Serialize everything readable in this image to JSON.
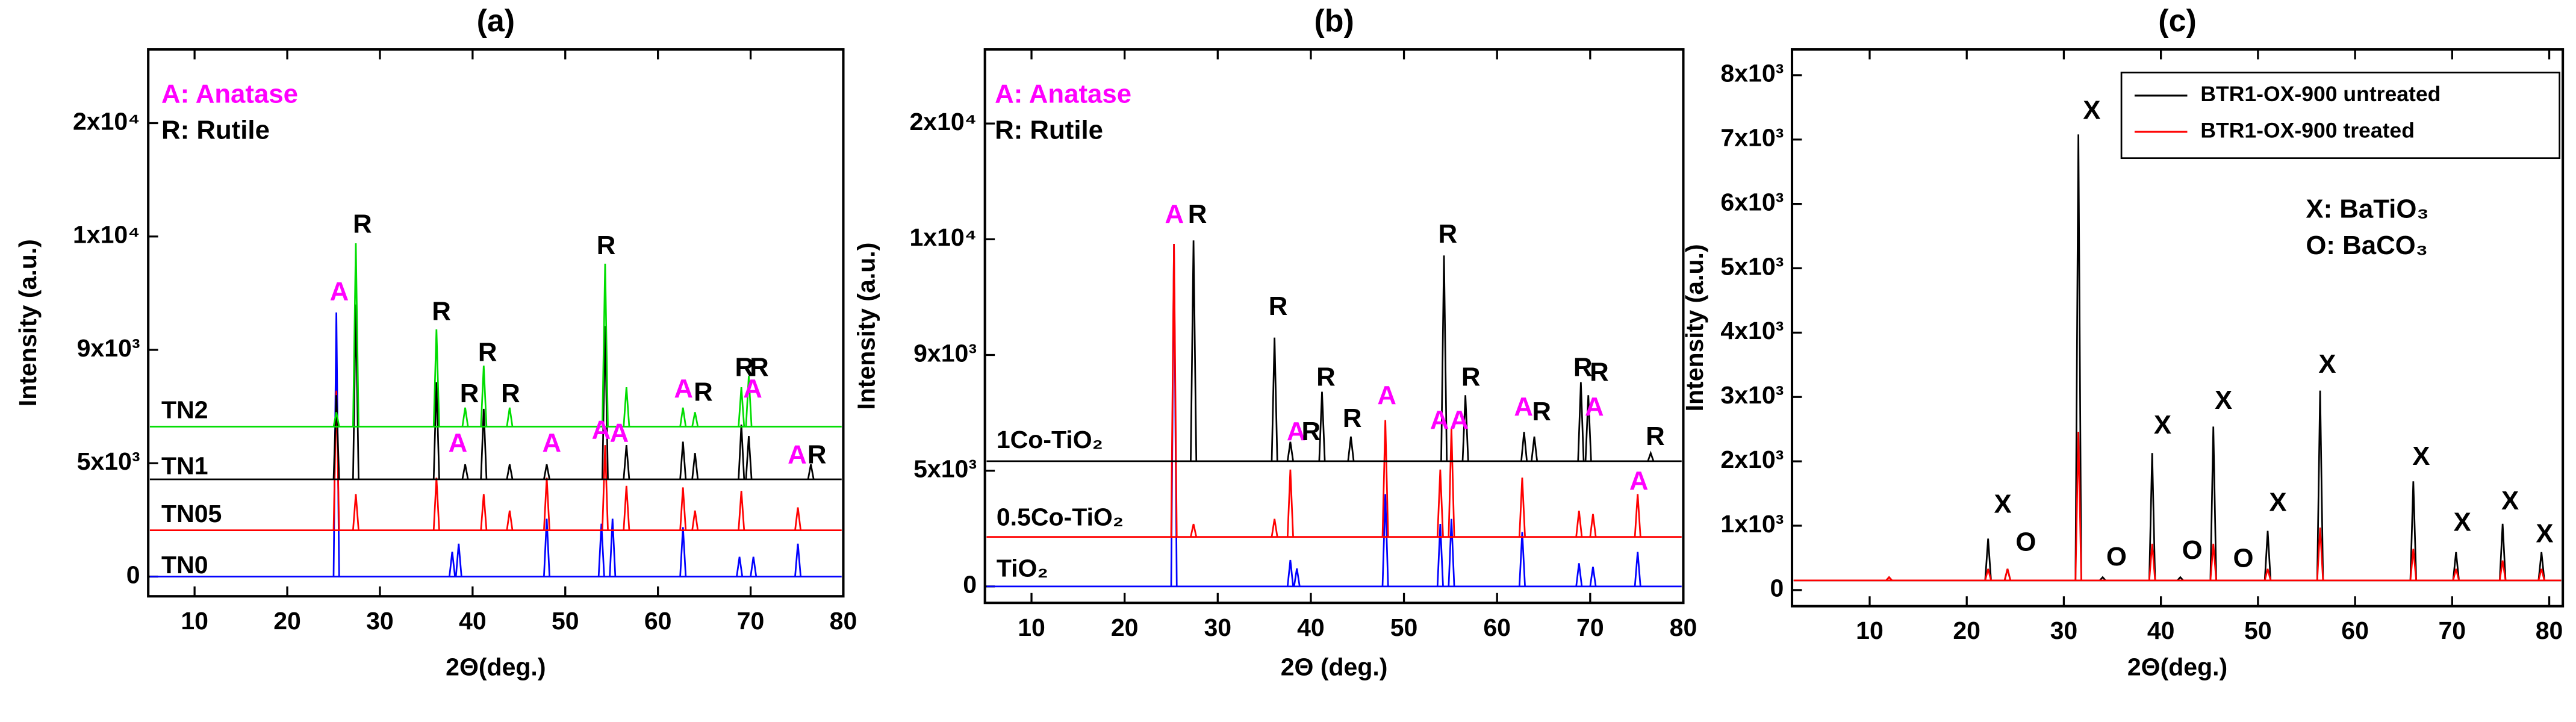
{
  "chart_data": [
    {
      "type": "line",
      "title": "(a)",
      "x_label": "2Θ(deg.)",
      "y_label": "Intensity (a.u.)",
      "xlim": [
        5,
        80
      ],
      "xticks": [
        10,
        20,
        30,
        40,
        50,
        60,
        70,
        80
      ],
      "ylim": [
        -870,
        26500
      ],
      "y_scale": "tick-spaced",
      "yticks": [
        0,
        {
          "value": 5000,
          "label": "5x10³"
        },
        {
          "value": 9000,
          "label": "9x10³"
        },
        {
          "value": 10000,
          "label": "1x10⁴"
        },
        {
          "value": 20000,
          "label": "2x10⁴"
        }
      ],
      "legend": "inline",
      "series": [
        {
          "name": "TN0",
          "color": "#0000ff",
          "baseline": 0,
          "x": [
            25.3,
            37.8,
            38.5,
            48.0,
            53.9,
            55.1,
            62.7,
            68.8,
            70.3,
            75.1
          ],
          "values": [
            9330,
            1090,
            1450,
            2550,
            2330,
            2550,
            2180,
            870,
            870,
            1450
          ]
        },
        {
          "name": "TN05",
          "color": "#ff0000",
          "baseline": 2040,
          "x": [
            25.3,
            27.4,
            36.1,
            41.2,
            44.0,
            48.0,
            54.3,
            56.6,
            62.7,
            64.0,
            69.0,
            75.1
          ],
          "values": [
            7560,
            3640,
            4360,
            3640,
            2910,
            4360,
            5640,
            4000,
            3930,
            2910,
            3780,
            3050
          ]
        },
        {
          "name": "TN1",
          "color": "#000000",
          "baseline": 4290,
          "x": [
            25.3,
            27.4,
            36.1,
            39.2,
            41.2,
            44.0,
            48.0,
            54.3,
            56.6,
            62.7,
            64.0,
            69.0,
            69.8,
            76.5
          ],
          "values": [
            7400,
            9400,
            7860,
            4950,
            6920,
            4950,
            4950,
            9210,
            5640,
            5760,
            5360,
            6360,
            5960,
            4950
          ]
        },
        {
          "name": "TN2",
          "color": "#00dd00",
          "baseline": 6290,
          "x": [
            25.3,
            27.4,
            36.1,
            39.2,
            41.2,
            44.0,
            54.3,
            56.6,
            62.7,
            64.0,
            69.0,
            69.8
          ],
          "values": [
            6800,
            9940,
            9180,
            6960,
            8440,
            6960,
            9760,
            7680,
            6960,
            6800,
            7680,
            8080
          ]
        }
      ],
      "annotations": [
        {
          "text": "A: Anatase",
          "color": "#ff00ff"
        },
        {
          "text": "R: Rutile",
          "color": "#000000"
        },
        {
          "text": "A",
          "color": "#ff00ff"
        },
        {
          "text": "R",
          "color": "#000000"
        },
        {
          "text": "R",
          "color": "#000000"
        },
        {
          "text": "A",
          "color": "#ff00ff"
        },
        {
          "text": "R",
          "color": "#000000"
        },
        {
          "text": "R",
          "color": "#000000"
        },
        {
          "text": "R",
          "color": "#000000"
        },
        {
          "text": "A",
          "color": "#ff00ff"
        },
        {
          "text": "R",
          "color": "#000000"
        },
        {
          "text": "A",
          "color": "#ff00ff"
        },
        {
          "text": "A",
          "color": "#ff00ff"
        },
        {
          "text": "A",
          "color": "#ff00ff"
        },
        {
          "text": "R",
          "color": "#000000"
        },
        {
          "text": "R",
          "color": "#000000"
        },
        {
          "text": "R",
          "color": "#000000"
        },
        {
          "text": "A",
          "color": "#ff00ff"
        },
        {
          "text": "A",
          "color": "#ff00ff"
        },
        {
          "text": "R",
          "color": "#000000"
        }
      ]
    },
    {
      "type": "line",
      "title": "(b)",
      "x_label": "2Θ (deg.)",
      "y_label": "Intensity (a.u.)",
      "xlim": [
        5,
        80
      ],
      "xticks": [
        10,
        20,
        30,
        40,
        50,
        60,
        70,
        80
      ],
      "ylim": [
        -710,
        26400
      ],
      "y_scale": "tick-spaced",
      "yticks": [
        0,
        {
          "value": 5000,
          "label": "5x10³"
        },
        {
          "value": 9000,
          "label": "9x10³"
        },
        {
          "value": 10000,
          "label": "1x10⁴"
        },
        {
          "value": 20000,
          "label": "2x10⁴"
        }
      ],
      "legend": "inline",
      "series": [
        {
          "name": "TiO₂",
          "color": "#0000ff",
          "baseline": 0,
          "x": [
            25.3,
            37.8,
            38.5,
            48.0,
            53.9,
            55.1,
            62.7,
            68.8,
            70.3,
            75.1
          ],
          "values": [
            9960,
            1140,
            780,
            3990,
            2700,
            2920,
            2350,
            1000,
            850,
            1490
          ]
        },
        {
          "name": "0.5Co-TiO₂",
          "color": "#ff0000",
          "baseline": 2140,
          "x": [
            25.3,
            27.4,
            36.1,
            37.8,
            48.0,
            53.9,
            55.1,
            62.7,
            68.8,
            70.3,
            75.1
          ],
          "values": [
            9960,
            2700,
            2920,
            5040,
            6750,
            5040,
            6470,
            4700,
            3270,
            3130,
            3990
          ]
        },
        {
          "name": "1Co-TiO₂",
          "color": "#000000",
          "baseline": 5330,
          "x": [
            27.4,
            36.1,
            37.8,
            41.2,
            44.3,
            54.3,
            56.6,
            62.9,
            64.0,
            69.0,
            69.8,
            76.5
          ],
          "values": [
            9990,
            9150,
            6000,
            7730,
            6180,
            9860,
            7610,
            6340,
            6180,
            8060,
            7610,
            5610
          ]
        }
      ],
      "annotations": [
        {
          "text": "A: Anatase",
          "color": "#ff00ff"
        },
        {
          "text": "R: Rutile",
          "color": "#000000"
        },
        {
          "text": "A",
          "color": "#ff00ff"
        },
        {
          "text": "R",
          "color": "#000000"
        },
        {
          "text": "R",
          "color": "#000000"
        },
        {
          "text": "A",
          "color": "#ff00ff"
        },
        {
          "text": "R",
          "color": "#000000"
        },
        {
          "text": "R",
          "color": "#000000"
        },
        {
          "text": "R",
          "color": "#000000"
        },
        {
          "text": "A",
          "color": "#ff00ff"
        },
        {
          "text": "R",
          "color": "#000000"
        },
        {
          "text": "A",
          "color": "#ff00ff"
        },
        {
          "text": "A",
          "color": "#ff00ff"
        },
        {
          "text": "R",
          "color": "#000000"
        },
        {
          "text": "A",
          "color": "#ff00ff"
        },
        {
          "text": "R",
          "color": "#000000"
        },
        {
          "text": "R",
          "color": "#000000"
        },
        {
          "text": "R",
          "color": "#000000"
        },
        {
          "text": "A",
          "color": "#ff00ff"
        },
        {
          "text": "R",
          "color": "#000000"
        },
        {
          "text": "A",
          "color": "#ff00ff"
        }
      ]
    },
    {
      "type": "line",
      "title": "(c)",
      "x_label": "2Θ(deg.)",
      "y_label": "Intensity (a.u.)",
      "xlim": [
        2,
        81.4
      ],
      "xticks": [
        10,
        20,
        30,
        40,
        50,
        60,
        70,
        80
      ],
      "ylim": [
        -250,
        8400
      ],
      "y_scale": "linear",
      "yticks": [
        0,
        {
          "value": 1000,
          "label": "1x10³"
        },
        {
          "value": 2000,
          "label": "2x10³"
        },
        {
          "value": 3000,
          "label": "3x10³"
        },
        {
          "value": 4000,
          "label": "4x10³"
        },
        {
          "value": 5000,
          "label": "5x10³"
        },
        {
          "value": 6000,
          "label": "6x10³"
        },
        {
          "value": 7000,
          "label": "7x10³"
        },
        {
          "value": 8000,
          "label": "8x10³"
        }
      ],
      "legend": "upper right",
      "series": [
        {
          "name": "BTR1-OX-900 untreated",
          "color": "#000000",
          "baseline": 150,
          "x": [
            12.0,
            22.2,
            24.2,
            31.5,
            34.0,
            39.1,
            42.0,
            45.4,
            51.0,
            56.4,
            66.0,
            70.4,
            75.2,
            79.2
          ],
          "values": [
            200,
            800,
            330,
            7080,
            200,
            2130,
            200,
            2540,
            920,
            3100,
            1690,
            590,
            1030,
            590
          ]
        },
        {
          "name": "BTR1-OX-900 treated",
          "color": "#ff0000",
          "baseline": 150,
          "x": [
            12.0,
            22.2,
            24.2,
            31.5,
            39.1,
            45.4,
            51.0,
            56.4,
            66.0,
            70.4,
            75.2,
            79.2
          ],
          "values": [
            200,
            330,
            330,
            2460,
            720,
            720,
            330,
            970,
            640,
            330,
            460,
            330
          ]
        }
      ],
      "annotations": [
        {
          "text": "X: BaTiO₃",
          "color": "#000000"
        },
        {
          "text": "O: BaCO₃",
          "color": "#000000"
        },
        {
          "text": "X",
          "color": "#000000"
        },
        {
          "text": "O",
          "color": "#000000"
        },
        {
          "text": "X",
          "color": "#000000"
        },
        {
          "text": "O",
          "color": "#000000"
        },
        {
          "text": "X",
          "color": "#000000"
        },
        {
          "text": "O",
          "color": "#000000"
        },
        {
          "text": "X",
          "color": "#000000"
        },
        {
          "text": "O",
          "color": "#000000"
        },
        {
          "text": "X",
          "color": "#000000"
        },
        {
          "text": "X",
          "color": "#000000"
        },
        {
          "text": "X",
          "color": "#000000"
        },
        {
          "text": "X",
          "color": "#000000"
        },
        {
          "text": "X",
          "color": "#000000"
        },
        {
          "text": "X",
          "color": "#000000"
        }
      ]
    }
  ]
}
